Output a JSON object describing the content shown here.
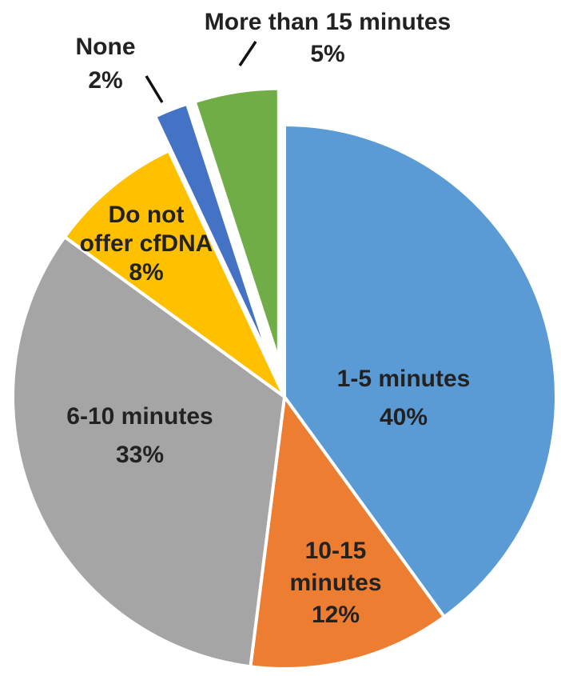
{
  "chart_data": {
    "type": "pie",
    "title": "",
    "slices": [
      {
        "label_lines": [
          "1-5 minutes"
        ],
        "value": 40,
        "value_label": "40%",
        "color": "#5b9bd5",
        "exploded": false
      },
      {
        "label_lines": [
          "10-15",
          "minutes"
        ],
        "value": 12,
        "value_label": "12%",
        "color": "#ed7d31",
        "exploded": false
      },
      {
        "label_lines": [
          "6-10 minutes"
        ],
        "value": 33,
        "value_label": "33%",
        "color": "#a5a5a5",
        "exploded": false
      },
      {
        "label_lines": [
          "Do not",
          "offer cfDNA"
        ],
        "value": 8,
        "value_label": "8%",
        "color": "#ffc000",
        "exploded": false
      },
      {
        "label_lines": [
          "None"
        ],
        "value": 2,
        "value_label": "2%",
        "color": "#4472c4",
        "exploded": true
      },
      {
        "label_lines": [
          "More than 15 minutes"
        ],
        "value": 5,
        "value_label": "5%",
        "color": "#70ad47",
        "exploded": true
      }
    ],
    "start_angle_deg": 0,
    "direction": "clockwise"
  }
}
